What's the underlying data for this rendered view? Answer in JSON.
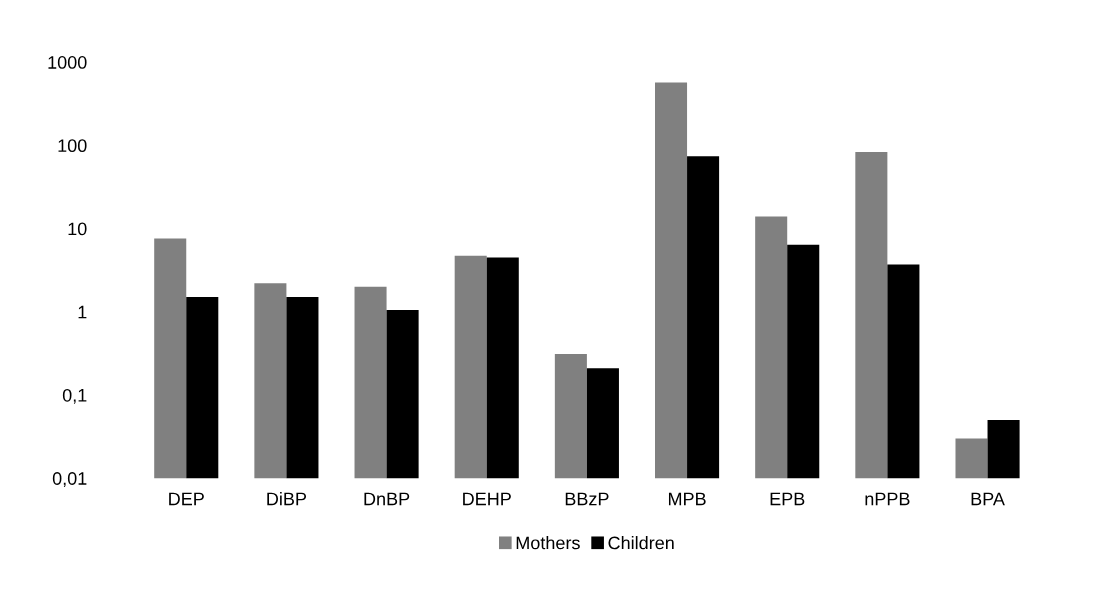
{
  "chart_data": {
    "type": "bar",
    "log": true,
    "categories": [
      "DEP",
      "DiBP",
      "DnBP",
      "DEHP",
      "BBzP",
      "MPB",
      "EPB",
      "nPPB",
      "BPA"
    ],
    "series": [
      {
        "name": "Mothers",
        "color": "#808080",
        "values": [
          7.6,
          2.2,
          2.0,
          4.7,
          0.31,
          570,
          14,
          83,
          0.03
        ]
      },
      {
        "name": "Children",
        "color": "#000000",
        "values": [
          1.5,
          1.5,
          1.05,
          4.5,
          0.21,
          74,
          6.4,
          3.7,
          0.05
        ]
      }
    ],
    "ylim": [
      0.01,
      1000
    ],
    "yticks": [
      {
        "value": 0.01,
        "label": "0,01"
      },
      {
        "value": 0.1,
        "label": "0,1"
      },
      1,
      10,
      100,
      1000
    ],
    "grid": false,
    "legend": "bottom"
  }
}
